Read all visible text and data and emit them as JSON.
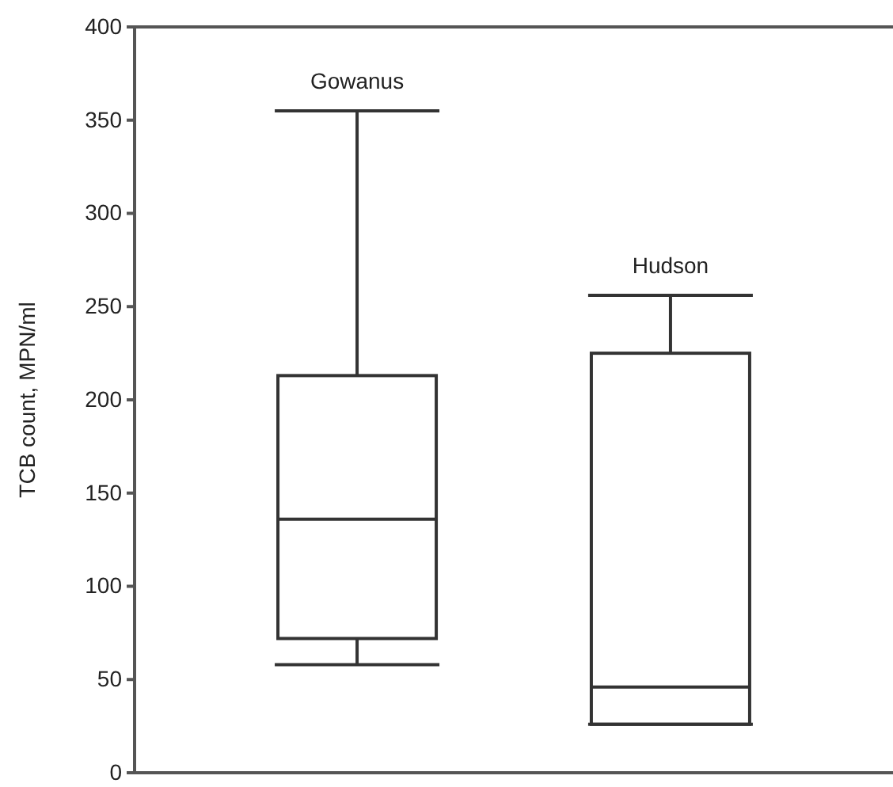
{
  "chart_data": {
    "type": "box",
    "ylabel": "TCB count, MPN/ml",
    "categories": [
      "Gowanus",
      "Hudson"
    ],
    "boxes": [
      {
        "low": 58,
        "q1": 72,
        "median": 136,
        "q3": 213,
        "high": 355
      },
      {
        "low": 26,
        "q1": 26,
        "median": 46,
        "q3": 225,
        "high": 256
      }
    ],
    "ylim": [
      0,
      400
    ],
    "yticks": [
      0,
      50,
      100,
      150,
      200,
      250,
      300,
      350,
      400
    ],
    "tick_labels": "y",
    "grid": false
  }
}
